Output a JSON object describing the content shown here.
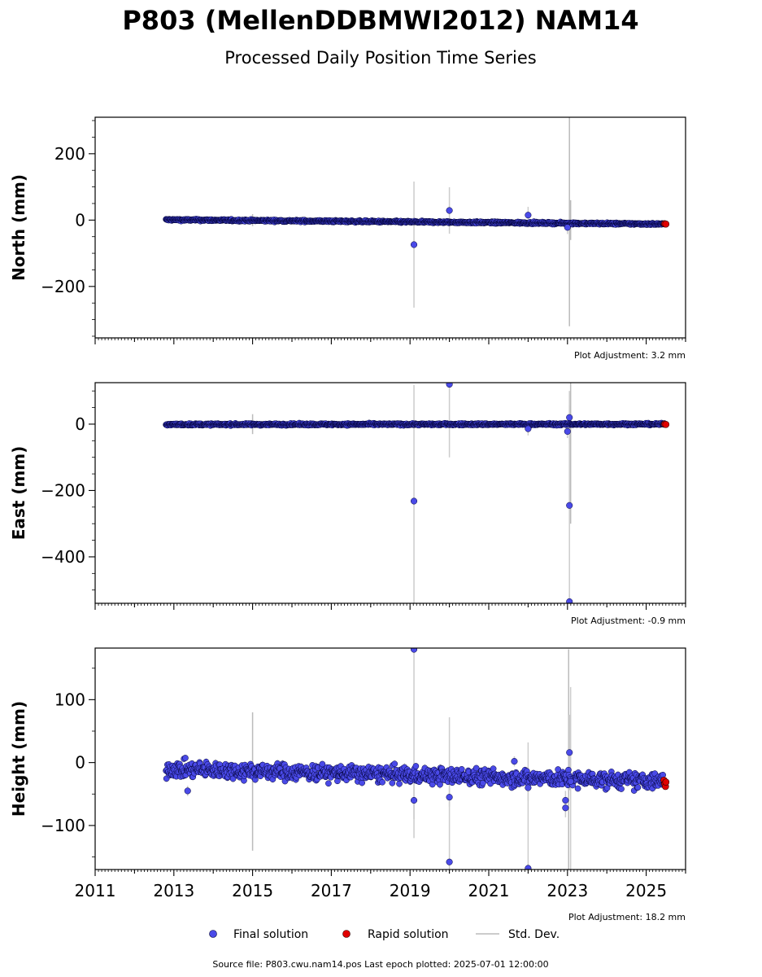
{
  "title": "P803 (MellenDDBMWI2012) NAM14",
  "subtitle": "Processed Daily Position Time Series",
  "x_ticks": [
    "2011",
    "2013",
    "2015",
    "2017",
    "2019",
    "2021",
    "2023",
    "2025"
  ],
  "legend": {
    "final_label": "Final solution",
    "rapid_label": "Rapid solution",
    "std_label": "Std. Dev."
  },
  "footer": "Source file: P803.cwu.nam14.pos  Last epoch plotted: 2025-07-01 12:00:00",
  "colors": {
    "final": "#4a4ae8",
    "rapid": "#e00000",
    "std": "#cccccc",
    "edge": "#000033"
  },
  "chart_data": [
    {
      "type": "scatter",
      "ylabel": "North (mm)",
      "xlim": [
        2011.0,
        2026.0
      ],
      "ylim": [
        -355,
        310
      ],
      "y_ticks": [
        "200",
        "0",
        "−200"
      ],
      "adjustment": "Plot Adjustment: 3.2 mm",
      "trend": {
        "start_year": 2012.8,
        "start_value": 1,
        "end_year": 2025.5,
        "end_value": -12,
        "noise": 2
      },
      "outliers": [
        {
          "x": 2019.1,
          "y": -74,
          "std": 190
        },
        {
          "x": 2020.0,
          "y": 29,
          "std": 70
        },
        {
          "x": 2022.0,
          "y": 15,
          "std": 25
        },
        {
          "x": 2023.0,
          "y": -22,
          "std": 20
        }
      ],
      "std_lines": [
        {
          "x": 2015.0,
          "y": 0,
          "std": 18
        },
        {
          "x": 2023.05,
          "y": 0,
          "std": 320
        },
        {
          "x": 2023.08,
          "y": 0,
          "std": 60
        }
      ],
      "rapid": [
        {
          "x": 2025.47,
          "y": -11
        },
        {
          "x": 2025.5,
          "y": -12
        }
      ]
    },
    {
      "type": "scatter",
      "ylabel": "East (mm)",
      "xlim": [
        2011.0,
        2026.0
      ],
      "ylim": [
        -540,
        125
      ],
      "y_ticks": [
        "0",
        "−200",
        "−400"
      ],
      "adjustment": "Plot Adjustment: -0.9 mm",
      "trend": {
        "start_year": 2012.8,
        "start_value": -1,
        "end_year": 2025.5,
        "end_value": 0,
        "noise": 2
      },
      "outliers": [
        {
          "x": 2019.1,
          "y": -232,
          "std": 350
        },
        {
          "x": 2020.0,
          "y": 120,
          "std": 220
        },
        {
          "x": 2022.0,
          "y": -14,
          "std": 20
        },
        {
          "x": 2023.0,
          "y": -22,
          "std": 20
        },
        {
          "x": 2023.05,
          "y": 20,
          "std": 80
        },
        {
          "x": 2023.05,
          "y": -245,
          "std": 300
        },
        {
          "x": 2023.05,
          "y": -535,
          "std": 20
        }
      ],
      "std_lines": [
        {
          "x": 2015.0,
          "y": 0,
          "std": 30
        },
        {
          "x": 2023.08,
          "y": 0,
          "std": 300
        }
      ],
      "rapid": [
        {
          "x": 2025.47,
          "y": 0
        },
        {
          "x": 2025.5,
          "y": -1
        }
      ]
    },
    {
      "type": "scatter",
      "ylabel": "Height (mm)",
      "xlim": [
        2011.0,
        2026.0
      ],
      "ylim": [
        -170,
        182
      ],
      "y_ticks": [
        "100",
        "0",
        "−100"
      ],
      "adjustment": "Plot Adjustment: 18.2 mm",
      "trend": {
        "start_year": 2012.8,
        "start_value": -10,
        "end_year": 2025.5,
        "end_value": -30,
        "noise": 9
      },
      "outliers": [
        {
          "x": 2013.35,
          "y": -45,
          "std": 8
        },
        {
          "x": 2019.1,
          "y": 180,
          "std": 300
        },
        {
          "x": 2019.1,
          "y": -60,
          "std": 30
        },
        {
          "x": 2020.0,
          "y": -158,
          "std": 230
        },
        {
          "x": 2020.0,
          "y": -55,
          "std": 15
        },
        {
          "x": 2021.65,
          "y": 2,
          "std": 8
        },
        {
          "x": 2022.0,
          "y": -168,
          "std": 200
        },
        {
          "x": 2022.0,
          "y": -40,
          "std": 20
        },
        {
          "x": 2022.95,
          "y": -72,
          "std": 15
        },
        {
          "x": 2022.95,
          "y": -60,
          "std": 15
        },
        {
          "x": 2023.05,
          "y": 16,
          "std": 60
        },
        {
          "x": 2023.08,
          "y": -30,
          "std": 150
        }
      ],
      "std_lines": [
        {
          "x": 2015.0,
          "y": -30,
          "std": 110
        },
        {
          "x": 2023.03,
          "y": 0,
          "std": 180
        }
      ],
      "rapid": [
        {
          "x": 2025.45,
          "y": -28
        },
        {
          "x": 2025.47,
          "y": -34
        },
        {
          "x": 2025.49,
          "y": -38
        },
        {
          "x": 2025.5,
          "y": -31
        }
      ]
    }
  ]
}
